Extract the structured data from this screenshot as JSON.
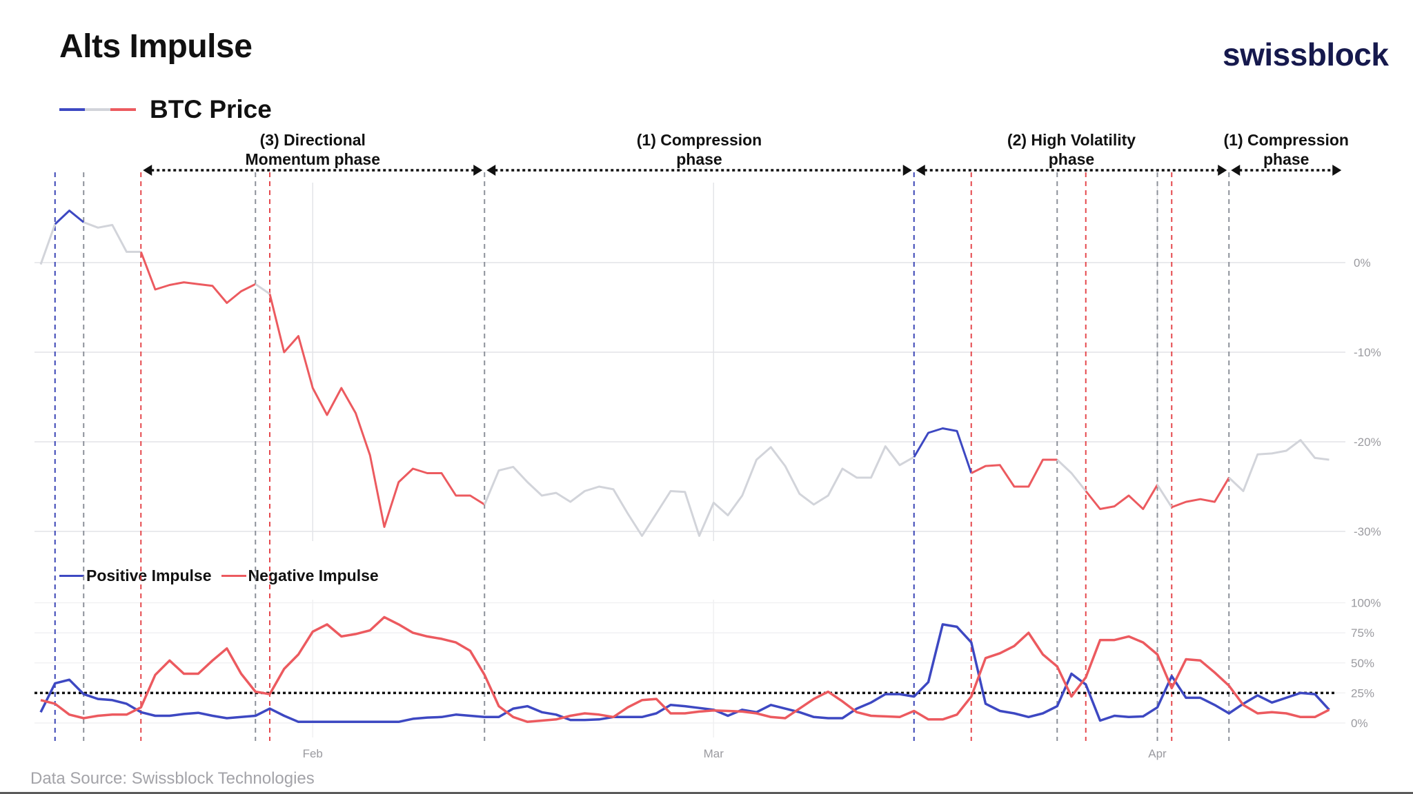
{
  "header": {
    "title": "Alts Impulse",
    "logo": "swissblock"
  },
  "footer": {
    "source": "Data Source: Swissblock Technologies"
  },
  "colors": {
    "positive": "#3d48c2",
    "negative": "#ec5a5f",
    "neutral": "#d2d4da",
    "logo": "#16194d",
    "threshold": "#111111"
  },
  "legend_price": {
    "label": "BTC Price"
  },
  "legend_impulse": {
    "positive": "Positive Impulse",
    "negative": "Negative Impulse"
  },
  "phases": [
    {
      "line1": "(3) Directional",
      "line2": "Momentum phase",
      "start": "Jan 20",
      "end": "Feb 13"
    },
    {
      "line1": "(1) Compression",
      "line2": "phase",
      "start": "Feb 13",
      "end": "Mar 15"
    },
    {
      "line1": "(2) High Volatility",
      "line2": "phase",
      "start": "Mar 15",
      "end": "Apr 6"
    },
    {
      "line1": "(1) Compression",
      "line2": "phase",
      "start": "Apr 6",
      "end": "Apr 14"
    }
  ],
  "events": [
    {
      "date": "Jan 14",
      "regime": "positive"
    },
    {
      "date": "Jan 16",
      "regime": "neutral"
    },
    {
      "date": "Jan 20",
      "regime": "negative"
    },
    {
      "date": "Jan 28",
      "regime": "neutral"
    },
    {
      "date": "Jan 29",
      "regime": "negative"
    },
    {
      "date": "Feb 13",
      "regime": "neutral"
    },
    {
      "date": "Mar 15",
      "regime": "positive"
    },
    {
      "date": "Mar 19",
      "regime": "negative"
    },
    {
      "date": "Mar 25",
      "regime": "neutral"
    },
    {
      "date": "Mar 27",
      "regime": "negative"
    },
    {
      "date": "Apr 1",
      "regime": "neutral"
    },
    {
      "date": "Apr 2",
      "regime": "negative"
    },
    {
      "date": "Apr 6",
      "regime": "neutral"
    }
  ],
  "chart_data": [
    {
      "type": "line",
      "title": "",
      "series_label": "BTC Price",
      "legend_placement": "top-left",
      "color_by": "regime (positive blue / neutral gray / negative red)",
      "x_start": "Jan 13",
      "x_frequency": "daily",
      "ylim": [
        -31.5,
        7
      ],
      "grid": true,
      "y_ticks": [
        {
          "value": 0,
          "label": "0%"
        },
        {
          "value": -10,
          "label": "-10%"
        },
        {
          "value": -20,
          "label": "-20%"
        },
        {
          "value": -30,
          "label": "-30%"
        }
      ],
      "values": [
        -0.2,
        4.3,
        5.8,
        4.5,
        3.9,
        4.2,
        1.2,
        1.2,
        -3.0,
        -2.5,
        -2.2,
        -2.4,
        -2.6,
        -4.5,
        -3.2,
        -2.4,
        -3.5,
        -10,
        -8.2,
        -14,
        -17,
        -14,
        -16.8,
        -21.5,
        -29.5,
        -24.5,
        -23,
        -23.5,
        -23.5,
        -26,
        -26,
        -27,
        -23.2,
        -22.8,
        -24.5,
        -26,
        -25.7,
        -26.7,
        -25.5,
        -25,
        -25.3,
        -28,
        -30.5,
        -28,
        -25.5,
        -25.6,
        -30.5,
        -26.8,
        -28.2,
        -26,
        -22,
        -20.6,
        -22.7,
        -25.8,
        -27,
        -26,
        -23,
        -24,
        -24,
        -20.5,
        -22.6,
        -21.7,
        -19,
        -18.5,
        -18.8,
        -23.5,
        -22.7,
        -22.6,
        -25,
        -25,
        -22,
        -22,
        -23.5,
        -25.5,
        -27.5,
        -27.2,
        -26,
        -27.5,
        -24.8,
        -27.3,
        -26.7,
        -26.4,
        -26.7,
        -24,
        -25.5,
        -21.4,
        -21.3,
        -21,
        -19.8,
        -21.8,
        -22
      ]
    },
    {
      "type": "line",
      "title": "",
      "legend_placement": "top-left",
      "x_start": "Jan 13",
      "x_frequency": "daily",
      "ylim": [
        0,
        100
      ],
      "grid": true,
      "threshold": 25,
      "y_ticks": [
        {
          "value": 100,
          "label": "100%"
        },
        {
          "value": 75,
          "label": "75%"
        },
        {
          "value": 50,
          "label": "50%"
        },
        {
          "value": 25,
          "label": "25%"
        },
        {
          "value": 0,
          "label": "0%"
        }
      ],
      "x_ticks": [
        {
          "date": "Feb 1",
          "label": "Feb"
        },
        {
          "date": "Mar 1",
          "label": "Mar"
        },
        {
          "date": "Apr 1",
          "label": "Apr"
        }
      ],
      "series": [
        {
          "name": "Positive Impulse",
          "color": "#3d48c2",
          "values": [
            9,
            33,
            36,
            24,
            20,
            19,
            16,
            9,
            6,
            6,
            7.5,
            8.5,
            6,
            4,
            5,
            6,
            12,
            6,
            1,
            1,
            1,
            1,
            1,
            1,
            1,
            1,
            3.5,
            4.5,
            5,
            7,
            6,
            5,
            5,
            12,
            14,
            9,
            7,
            2.5,
            2.5,
            3,
            5,
            5,
            5,
            8,
            15,
            14,
            12.5,
            11,
            6,
            11,
            9,
            15,
            12,
            9,
            5,
            4,
            4,
            12,
            17,
            24,
            24,
            22,
            34,
            82,
            80,
            67,
            16,
            10,
            8,
            5,
            8,
            14,
            41,
            32,
            2,
            6,
            5,
            5.5,
            13,
            39,
            21,
            21,
            15,
            8,
            16,
            23,
            17,
            21,
            25,
            24,
            11
          ]
        },
        {
          "name": "Negative Impulse",
          "color": "#ec5a5f",
          "values": [
            19,
            16,
            7,
            4,
            6,
            7,
            7,
            13,
            40,
            52,
            41,
            41,
            52,
            62,
            41,
            26,
            24,
            45,
            57,
            76,
            82,
            72,
            74,
            77,
            88,
            82,
            75,
            72,
            70,
            67,
            60,
            40,
            14,
            5,
            1,
            2,
            3,
            6,
            8,
            7,
            5,
            13,
            19,
            20,
            8,
            8,
            9.5,
            10.5,
            10,
            9.5,
            8,
            5,
            4,
            12,
            20,
            26,
            18,
            9,
            6,
            5.5,
            5,
            10,
            3,
            3,
            7,
            22,
            54,
            58,
            64,
            75,
            57,
            47,
            22,
            38,
            69,
            69,
            72,
            67,
            57,
            29,
            53,
            52,
            42,
            31,
            15,
            8,
            9,
            8,
            5,
            5,
            11
          ]
        }
      ]
    }
  ]
}
